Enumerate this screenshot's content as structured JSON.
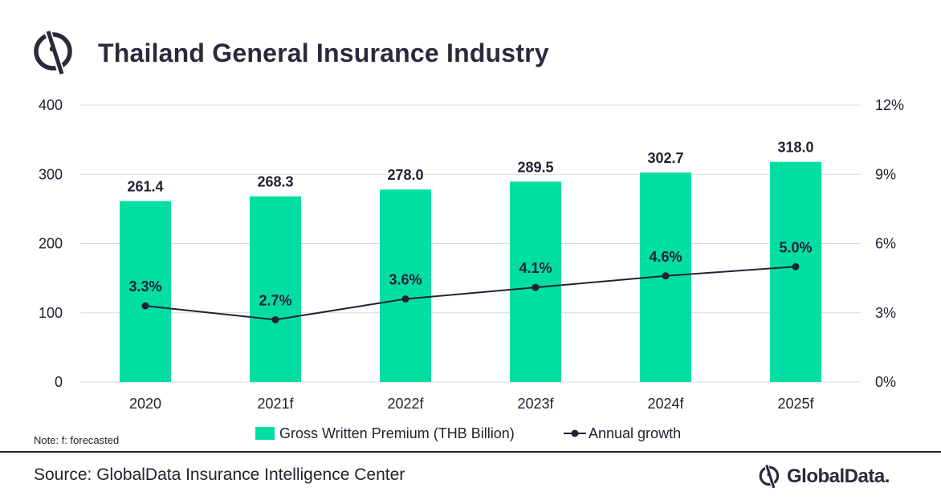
{
  "title": "Thailand General Insurance Industry",
  "note": "Note: f: forecasted",
  "source": "Source: GlobalData Insurance Intelligence Center",
  "brand": "GlobalData.",
  "colors": {
    "bar": "#00dea4",
    "line": "#222233",
    "text": "#222233",
    "grid": "#d9d9d9"
  },
  "chart_data": {
    "type": "bar+line",
    "categories": [
      "2020",
      "2021f",
      "2022f",
      "2023f",
      "2024f",
      "2025f"
    ],
    "series": [
      {
        "name": "Gross Written Premium (THB Billion)",
        "type": "bar",
        "axis": "left",
        "values": [
          261.4,
          268.3,
          278.0,
          289.5,
          302.7,
          318.0
        ],
        "labels": [
          "261.4",
          "268.3",
          "278.0",
          "289.5",
          "302.7",
          "318.0"
        ]
      },
      {
        "name": "Annual growth",
        "type": "line",
        "axis": "right",
        "values": [
          3.3,
          2.7,
          3.6,
          4.1,
          4.6,
          5.0
        ],
        "labels": [
          "3.3%",
          "2.7%",
          "3.6%",
          "4.1%",
          "4.6%",
          "5.0%"
        ]
      }
    ],
    "y_left": {
      "min": 0,
      "max": 400,
      "ticks": [
        0,
        100,
        200,
        300,
        400
      ],
      "tick_labels": [
        "0",
        "100",
        "200",
        "300",
        "400"
      ]
    },
    "y_right": {
      "min": 0,
      "max": 12,
      "ticks": [
        0,
        3,
        6,
        9,
        12
      ],
      "tick_labels": [
        "0%",
        "3%",
        "6%",
        "9%",
        "12%"
      ]
    },
    "grid": true,
    "legend_position": "bottom"
  }
}
